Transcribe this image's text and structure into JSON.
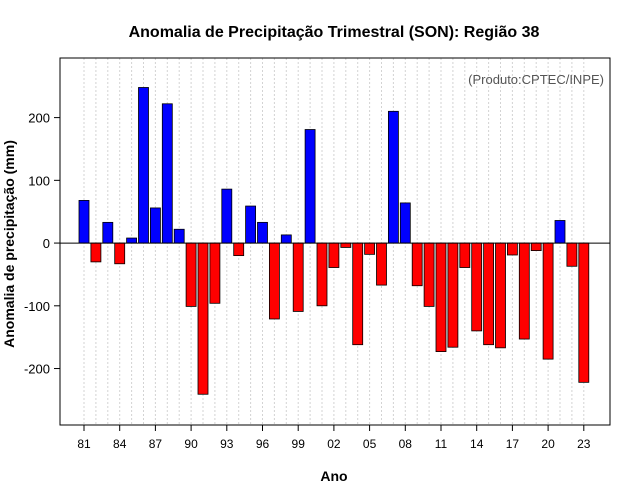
{
  "chart_data": {
    "type": "bar",
    "title": "Anomalia de Precipitação Trimestral (SON): Região 38",
    "xlabel": "Ano",
    "ylabel": "Anomalia de precipitação (mm)",
    "credit": "(Produto:CPTEC/INPE)",
    "ylim": [
      -290,
      295
    ],
    "yticks": [
      -200,
      -100,
      0,
      100,
      200
    ],
    "categories": [
      "81",
      "82",
      "83",
      "84",
      "85",
      "86",
      "87",
      "88",
      "89",
      "90",
      "91",
      "92",
      "93",
      "94",
      "95",
      "96",
      "97",
      "98",
      "99",
      "00",
      "01",
      "02",
      "03",
      "04",
      "05",
      "06",
      "07",
      "08",
      "09",
      "10",
      "11",
      "12",
      "13",
      "14",
      "15",
      "16",
      "17",
      "18",
      "19",
      "20",
      "21",
      "22",
      "23"
    ],
    "xtick_labels": [
      "81",
      "84",
      "87",
      "90",
      "93",
      "96",
      "99",
      "02",
      "05",
      "08",
      "11",
      "14",
      "17",
      "20",
      "23"
    ],
    "values": [
      68,
      -30,
      33,
      -33,
      8,
      248,
      56,
      222,
      22,
      -101,
      -241,
      -96,
      86,
      -20,
      59,
      33,
      -121,
      13,
      -109,
      181,
      -100,
      -39,
      -7,
      -162,
      -18,
      -67,
      210,
      64,
      -68,
      -101,
      -173,
      -166,
      -39,
      -140,
      -162,
      -167,
      -19,
      -153,
      -12,
      -185,
      36,
      -37,
      -222
    ],
    "positive_color": "#0000ff",
    "negative_color": "#ff0000",
    "grid": true
  }
}
